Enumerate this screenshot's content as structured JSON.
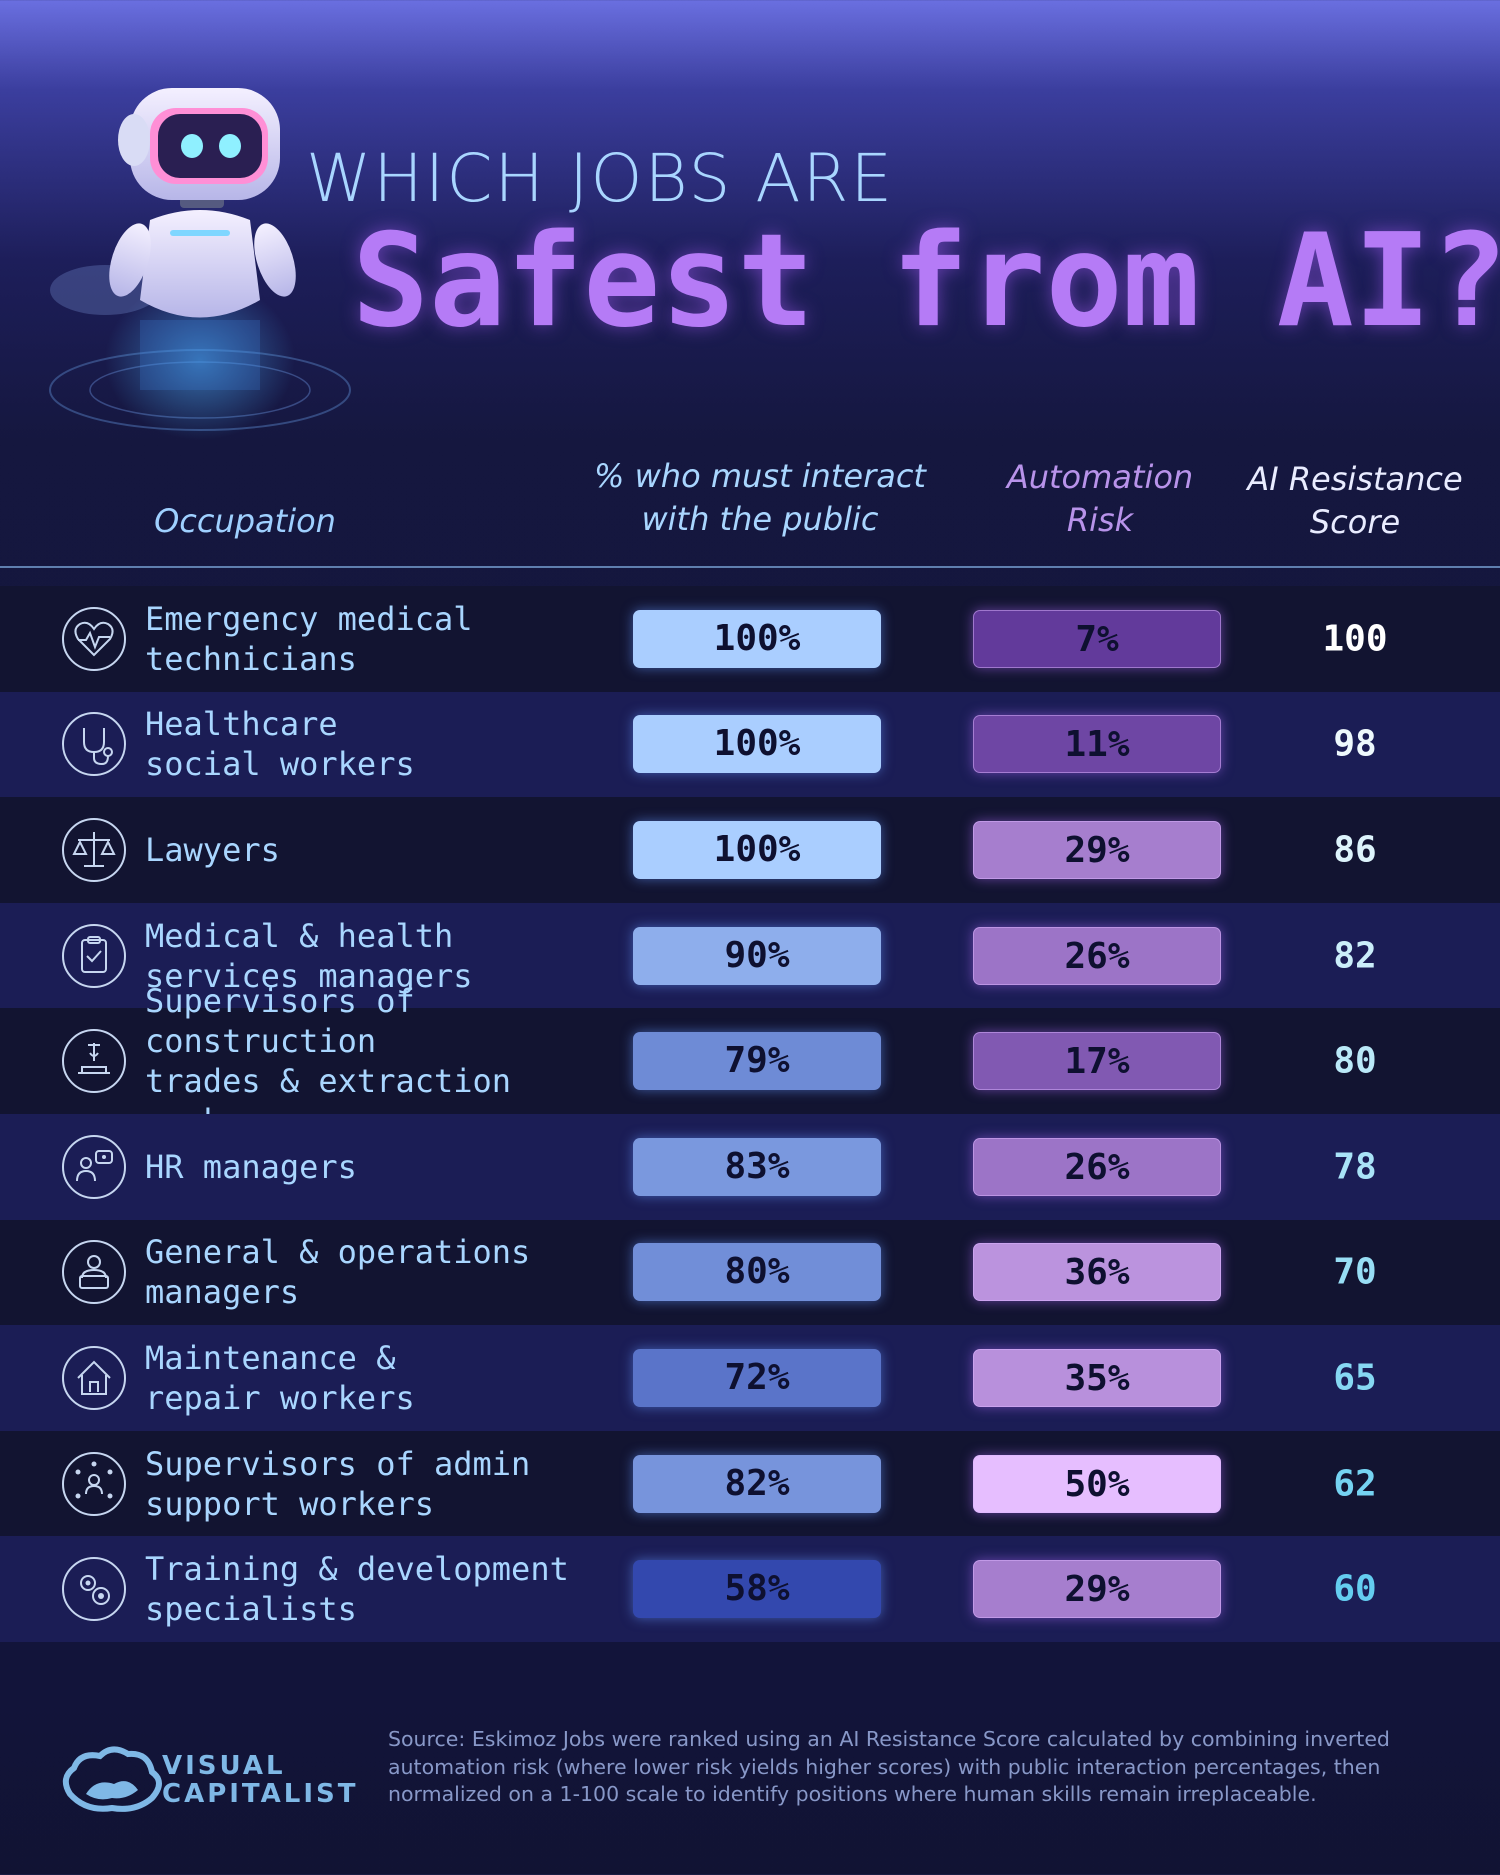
{
  "header": {
    "kicker": "WHICH JOBS ARE",
    "headline": "Safest from AI?"
  },
  "columns": {
    "occupation": "Occupation",
    "public": "% who must interact\nwith the public",
    "risk": "Automation\nRisk",
    "score": "AI Resistance\nScore"
  },
  "colors": {
    "title": "#b57bf6",
    "row_odd": "#121431",
    "row_even": "#1b1d55",
    "text_light_blue": "#a9d6ff"
  },
  "chart_data": {
    "type": "table",
    "columns": [
      "Occupation",
      "% who must interact with the public",
      "Automation Risk",
      "AI Resistance Score"
    ],
    "rows": [
      {
        "icon": "heartbeat-icon",
        "occupation": "Emergency medical\ntechnicians",
        "public": "100%",
        "public_value": 100,
        "risk": "7%",
        "risk_value": 7,
        "score": "100"
      },
      {
        "icon": "stethoscope-icon",
        "occupation": "Healthcare\nsocial workers",
        "public": "100%",
        "public_value": 100,
        "risk": "11%",
        "risk_value": 11,
        "score": "98"
      },
      {
        "icon": "scales-icon",
        "occupation": "Lawyers",
        "public": "100%",
        "public_value": 100,
        "risk": "29%",
        "risk_value": 29,
        "score": "86"
      },
      {
        "icon": "clipboard-icon",
        "occupation": "Medical & health\nservices managers",
        "public": "90%",
        "public_value": 90,
        "risk": "26%",
        "risk_value": 26,
        "score": "82"
      },
      {
        "icon": "crane-icon",
        "occupation": "Supervisors of construction\ntrades & extraction workers",
        "public": "79%",
        "public_value": 79,
        "risk": "17%",
        "risk_value": 17,
        "score": "80"
      },
      {
        "icon": "people-chat-icon",
        "occupation": "HR managers",
        "public": "83%",
        "public_value": 83,
        "risk": "26%",
        "risk_value": 26,
        "score": "78"
      },
      {
        "icon": "laptop-person-icon",
        "occupation": "General & operations\nmanagers",
        "public": "80%",
        "public_value": 80,
        "risk": "36%",
        "risk_value": 36,
        "score": "70"
      },
      {
        "icon": "house-tools-icon",
        "occupation": "Maintenance &\nrepair workers",
        "public": "72%",
        "public_value": 72,
        "risk": "35%",
        "risk_value": 35,
        "score": "65"
      },
      {
        "icon": "network-person-icon",
        "occupation": "Supervisors of admin\nsupport workers",
        "public": "82%",
        "public_value": 82,
        "risk": "50%",
        "risk_value": 50,
        "score": "62"
      },
      {
        "icon": "gears-icon",
        "occupation": "Training & development\nspecialists",
        "public": "58%",
        "public_value": 58,
        "risk": "29%",
        "risk_value": 29,
        "score": "60"
      }
    ]
  },
  "footer": {
    "logo_line1": "VISUAL",
    "logo_line2": "CAPITALIST",
    "source": "Source: Eskimoz Jobs were ranked using an AI Resistance Score calculated by combining inverted automation risk (where lower risk yields higher scores) with public interaction percentages, then normalized on a 1-100 scale to identify positions where human skills remain irreplaceable."
  }
}
